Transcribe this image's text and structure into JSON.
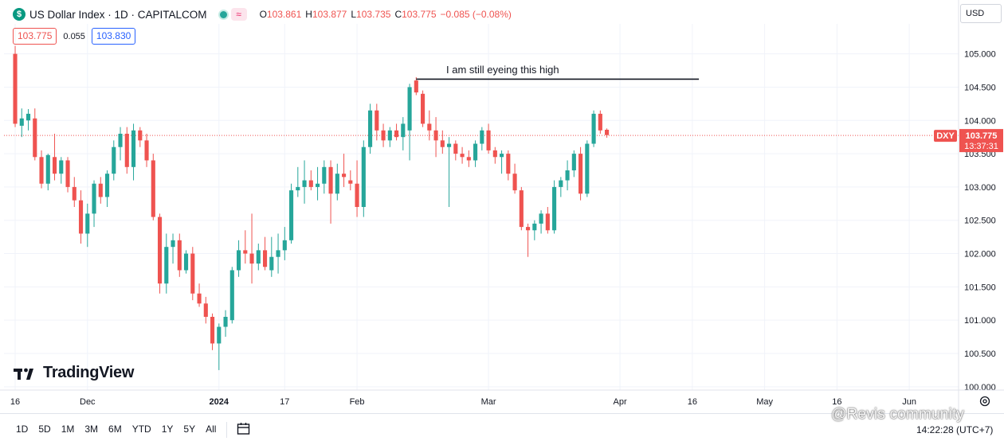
{
  "header": {
    "symbol_icon": "dollar-sign-icon",
    "symbol_glyph": "$",
    "title": "US Dollar Index · 1D · CAPITALCOM",
    "status_wave_glyph": "≈",
    "ohlc": {
      "o_label": "O",
      "o_value": "103.861",
      "h_label": "H",
      "h_value": "103.877",
      "l_label": "L",
      "l_value": "103.735",
      "c_label": "C",
      "c_value": "103.775",
      "change": "−0.085 (−0.08%)"
    }
  },
  "quote": {
    "sell": "103.775",
    "spread": "0.055",
    "buy": "103.830"
  },
  "currency": "USD",
  "annotation": "I am still eyeing this high",
  "brand": "TradingView",
  "price_label": {
    "symbol": "DXY",
    "price": "103.775",
    "countdown": "13:37:31"
  },
  "toolbar": {
    "ranges": [
      "1D",
      "5D",
      "1M",
      "3M",
      "6M",
      "YTD",
      "1Y",
      "5Y",
      "All"
    ],
    "clock": "14:22:28 (UTC+7)"
  },
  "watermark": "@Revis community",
  "colors": {
    "up": "#26a69a",
    "down": "#ef5350",
    "grid": "#f0f3fa",
    "axis_text": "#131722"
  },
  "chart_data": {
    "type": "candlestick",
    "title": "US Dollar Index · 1D · CAPITALCOM",
    "y_ticks": [
      "100.000",
      "100.500",
      "101.000",
      "101.500",
      "102.000",
      "102.500",
      "103.000",
      "103.500",
      "104.000",
      "104.500",
      "105.000"
    ],
    "ylim": [
      99.95,
      105.45
    ],
    "x_ticks": [
      {
        "label": "16",
        "index": 0
      },
      {
        "label": "Dec",
        "index": 11
      },
      {
        "label": "2024",
        "index": 31
      },
      {
        "label": "17",
        "index": 41
      },
      {
        "label": "Feb",
        "index": 52
      },
      {
        "label": "Mar",
        "index": 72
      },
      {
        "label": "Apr",
        "index": 92
      },
      {
        "label": "16",
        "index": 103
      },
      {
        "label": "May",
        "index": 114
      },
      {
        "label": "16",
        "index": 125
      },
      {
        "label": "Jun",
        "index": 136
      }
    ],
    "x_range": [
      -1.7,
      143.5
    ],
    "current_price": 103.775,
    "annotation_line": {
      "price": 104.62,
      "from_index": 61,
      "to_index": 104
    },
    "candles": [
      [
        105.0,
        105.12,
        103.9,
        103.95
      ],
      [
        103.92,
        104.18,
        103.75,
        104.03
      ],
      [
        104.0,
        104.17,
        103.85,
        104.1
      ],
      [
        104.03,
        104.18,
        103.4,
        103.45
      ],
      [
        103.45,
        103.55,
        102.98,
        103.05
      ],
      [
        103.05,
        103.5,
        102.95,
        103.48
      ],
      [
        103.45,
        103.8,
        103.1,
        103.2
      ],
      [
        103.2,
        103.45,
        103.05,
        103.4
      ],
      [
        103.4,
        103.45,
        102.92,
        103.0
      ],
      [
        103.0,
        103.15,
        102.7,
        102.8
      ],
      [
        102.8,
        102.95,
        102.15,
        102.3
      ],
      [
        102.3,
        102.75,
        102.1,
        102.6
      ],
      [
        102.6,
        103.1,
        102.4,
        103.05
      ],
      [
        103.05,
        103.15,
        102.75,
        102.85
      ],
      [
        102.85,
        103.25,
        102.7,
        103.2
      ],
      [
        103.2,
        103.7,
        103.1,
        103.6
      ],
      [
        103.6,
        103.9,
        103.4,
        103.8
      ],
      [
        103.8,
        103.9,
        103.2,
        103.3
      ],
      [
        103.3,
        103.95,
        103.1,
        103.85
      ],
      [
        103.85,
        103.9,
        103.6,
        103.7
      ],
      [
        103.7,
        103.8,
        103.3,
        103.4
      ],
      [
        103.4,
        103.5,
        102.5,
        102.55
      ],
      [
        102.55,
        102.6,
        101.4,
        101.55
      ],
      [
        101.55,
        102.3,
        101.4,
        102.1
      ],
      [
        102.1,
        102.3,
        101.85,
        102.2
      ],
      [
        102.2,
        102.3,
        101.65,
        101.75
      ],
      [
        101.75,
        102.05,
        101.7,
        102.0
      ],
      [
        102.0,
        102.1,
        101.3,
        101.4
      ],
      [
        101.4,
        101.55,
        101.2,
        101.25
      ],
      [
        101.25,
        101.35,
        100.95,
        101.05
      ],
      [
        101.05,
        101.1,
        100.55,
        100.65
      ],
      [
        100.65,
        100.95,
        100.25,
        100.9
      ],
      [
        100.9,
        101.15,
        100.75,
        101.05
      ],
      [
        101.0,
        101.8,
        100.95,
        101.75
      ],
      [
        101.75,
        102.2,
        101.65,
        102.05
      ],
      [
        102.05,
        102.35,
        101.85,
        102.0
      ],
      [
        102.0,
        102.6,
        101.55,
        101.85
      ],
      [
        101.85,
        102.15,
        101.75,
        102.05
      ],
      [
        102.05,
        102.25,
        101.75,
        101.8
      ],
      [
        101.75,
        102.25,
        101.65,
        101.95
      ],
      [
        101.95,
        102.3,
        101.7,
        102.05
      ],
      [
        102.05,
        102.4,
        101.9,
        102.2
      ],
      [
        102.2,
        103.05,
        102.15,
        102.95
      ],
      [
        102.95,
        103.3,
        102.85,
        103.0
      ],
      [
        103.0,
        103.4,
        102.75,
        103.1
      ],
      [
        103.1,
        103.25,
        102.95,
        103.0
      ],
      [
        103.0,
        103.3,
        102.8,
        103.05
      ],
      [
        103.05,
        103.4,
        102.9,
        103.3
      ],
      [
        103.3,
        103.4,
        102.45,
        102.9
      ],
      [
        102.9,
        103.35,
        102.8,
        103.2
      ],
      [
        103.2,
        103.5,
        103.0,
        103.15
      ],
      [
        103.1,
        103.25,
        102.95,
        103.05
      ],
      [
        103.05,
        103.4,
        102.55,
        102.7
      ],
      [
        102.7,
        103.7,
        102.55,
        103.6
      ],
      [
        103.6,
        104.25,
        103.5,
        104.15
      ],
      [
        104.15,
        104.25,
        103.7,
        103.85
      ],
      [
        103.85,
        103.95,
        103.6,
        103.7
      ],
      [
        103.7,
        103.9,
        103.6,
        103.85
      ],
      [
        103.85,
        103.95,
        103.7,
        103.75
      ],
      [
        103.75,
        104.05,
        103.55,
        103.95
      ],
      [
        103.85,
        104.55,
        103.4,
        104.5
      ],
      [
        104.6,
        104.65,
        104.38,
        104.42
      ],
      [
        104.4,
        104.45,
        103.9,
        103.95
      ],
      [
        103.95,
        104.15,
        103.7,
        103.85
      ],
      [
        103.85,
        104.05,
        103.45,
        103.7
      ],
      [
        103.7,
        103.85,
        103.5,
        103.6
      ],
      [
        103.6,
        103.75,
        102.7,
        103.65
      ],
      [
        103.65,
        103.7,
        103.4,
        103.5
      ],
      [
        103.5,
        103.6,
        103.35,
        103.45
      ],
      [
        103.45,
        103.55,
        103.3,
        103.4
      ],
      [
        103.4,
        103.7,
        103.3,
        103.65
      ],
      [
        103.65,
        103.9,
        103.55,
        103.85
      ],
      [
        103.85,
        103.95,
        103.5,
        103.55
      ],
      [
        103.55,
        103.6,
        103.35,
        103.45
      ],
      [
        103.45,
        103.55,
        103.2,
        103.5
      ],
      [
        103.5,
        103.55,
        103.1,
        103.2
      ],
      [
        103.2,
        103.35,
        102.9,
        102.95
      ],
      [
        102.95,
        103.0,
        102.35,
        102.4
      ],
      [
        102.4,
        102.45,
        101.95,
        102.35
      ],
      [
        102.35,
        102.5,
        102.2,
        102.45
      ],
      [
        102.45,
        102.65,
        102.3,
        102.6
      ],
      [
        102.6,
        102.7,
        102.3,
        102.35
      ],
      [
        102.35,
        103.1,
        102.3,
        103.0
      ],
      [
        103.0,
        103.15,
        102.85,
        103.1
      ],
      [
        103.1,
        103.4,
        102.95,
        103.25
      ],
      [
        103.25,
        103.55,
        103.15,
        103.5
      ],
      [
        103.5,
        103.6,
        102.8,
        102.9
      ],
      [
        102.9,
        103.7,
        102.85,
        103.65
      ],
      [
        103.65,
        104.15,
        103.6,
        104.1
      ],
      [
        104.1,
        104.15,
        103.8,
        103.85
      ],
      [
        103.86,
        103.88,
        103.74,
        103.78
      ]
    ]
  }
}
